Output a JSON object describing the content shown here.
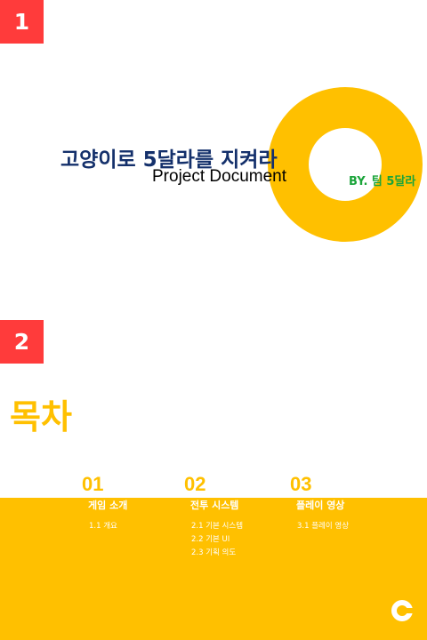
{
  "slides": [
    {
      "number": "1",
      "title_ko": "고양이로 5달라를 지켜라",
      "title_en": "Project Document",
      "byline": "BY. 팀 5달라"
    },
    {
      "number": "2",
      "title": "목차",
      "sections": [
        {
          "num": "01",
          "heading": "게임 소개",
          "items": [
            "1.1 개요"
          ]
        },
        {
          "num": "02",
          "heading": "전투 시스템",
          "items": [
            "2.1 기본 시스템",
            "2.2 기본 UI",
            "2.3 기획 의도"
          ]
        },
        {
          "num": "03",
          "heading": "플레이 영상",
          "items": [
            "3.1 플레이 영상"
          ]
        }
      ]
    }
  ],
  "colors": {
    "accent_yellow": "#ffc000",
    "badge_red": "#ff3b3b",
    "title_navy": "#14306b",
    "byline_green": "#1aa43a"
  },
  "icons": [
    "ring-logo-icon"
  ]
}
